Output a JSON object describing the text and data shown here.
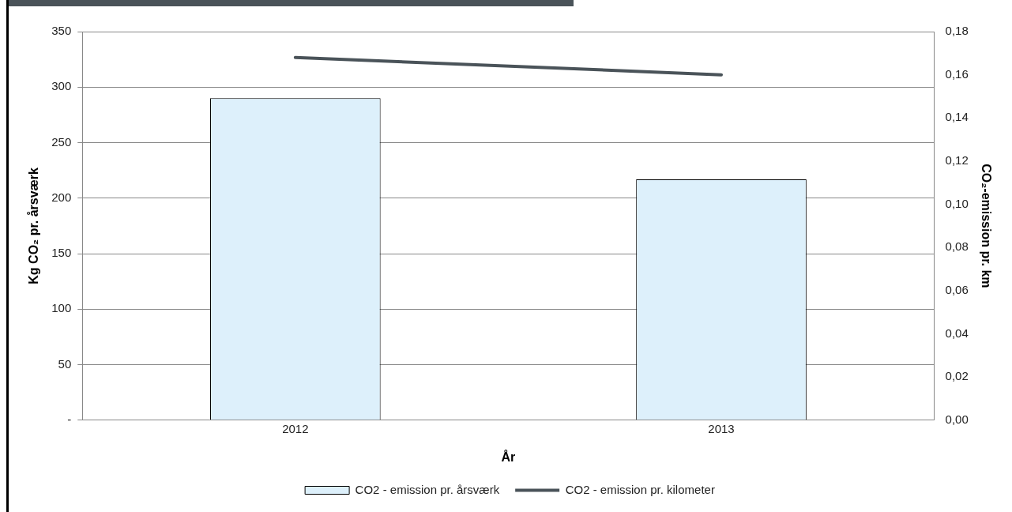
{
  "chart_data": {
    "type": "bar",
    "xlabel": "År",
    "ylabel": "Kg CO₂ pr. årsværk",
    "y2label": "CO₂-emission pr. km",
    "categories": [
      "2012",
      "2013"
    ],
    "series": [
      {
        "name": "CO2 - emission pr. årsværk",
        "color": "#ddf0fb",
        "values": [
          290,
          217
        ]
      },
      {
        "name": "CO2 - emission pr. kilometer",
        "type": "line",
        "axis": "y2",
        "color": "#4a5359",
        "values": [
          0.168,
          0.16
        ]
      }
    ],
    "ylim": [
      0,
      350
    ],
    "yticks": [
      {
        "value": 0,
        "label": "-"
      },
      50,
      100,
      150,
      200,
      250,
      300,
      350
    ],
    "y2lim": [
      0,
      0.18
    ],
    "y2ticks": [
      {
        "value": 0,
        "label": "0,00"
      },
      {
        "value": 0.02,
        "label": "0,02"
      },
      {
        "value": 0.04,
        "label": "0,04"
      },
      {
        "value": 0.06,
        "label": "0,06"
      },
      {
        "value": 0.08,
        "label": "0,08"
      },
      {
        "value": 0.1,
        "label": "0,10"
      },
      {
        "value": 0.12,
        "label": "0,12"
      },
      {
        "value": 0.14,
        "label": "0,14"
      },
      {
        "value": 0.16,
        "label": "0,16"
      },
      {
        "value": 0.18,
        "label": "0,18"
      }
    ],
    "grid": "y",
    "legend": "bottom",
    "marker": "none",
    "line_style": "solid"
  }
}
